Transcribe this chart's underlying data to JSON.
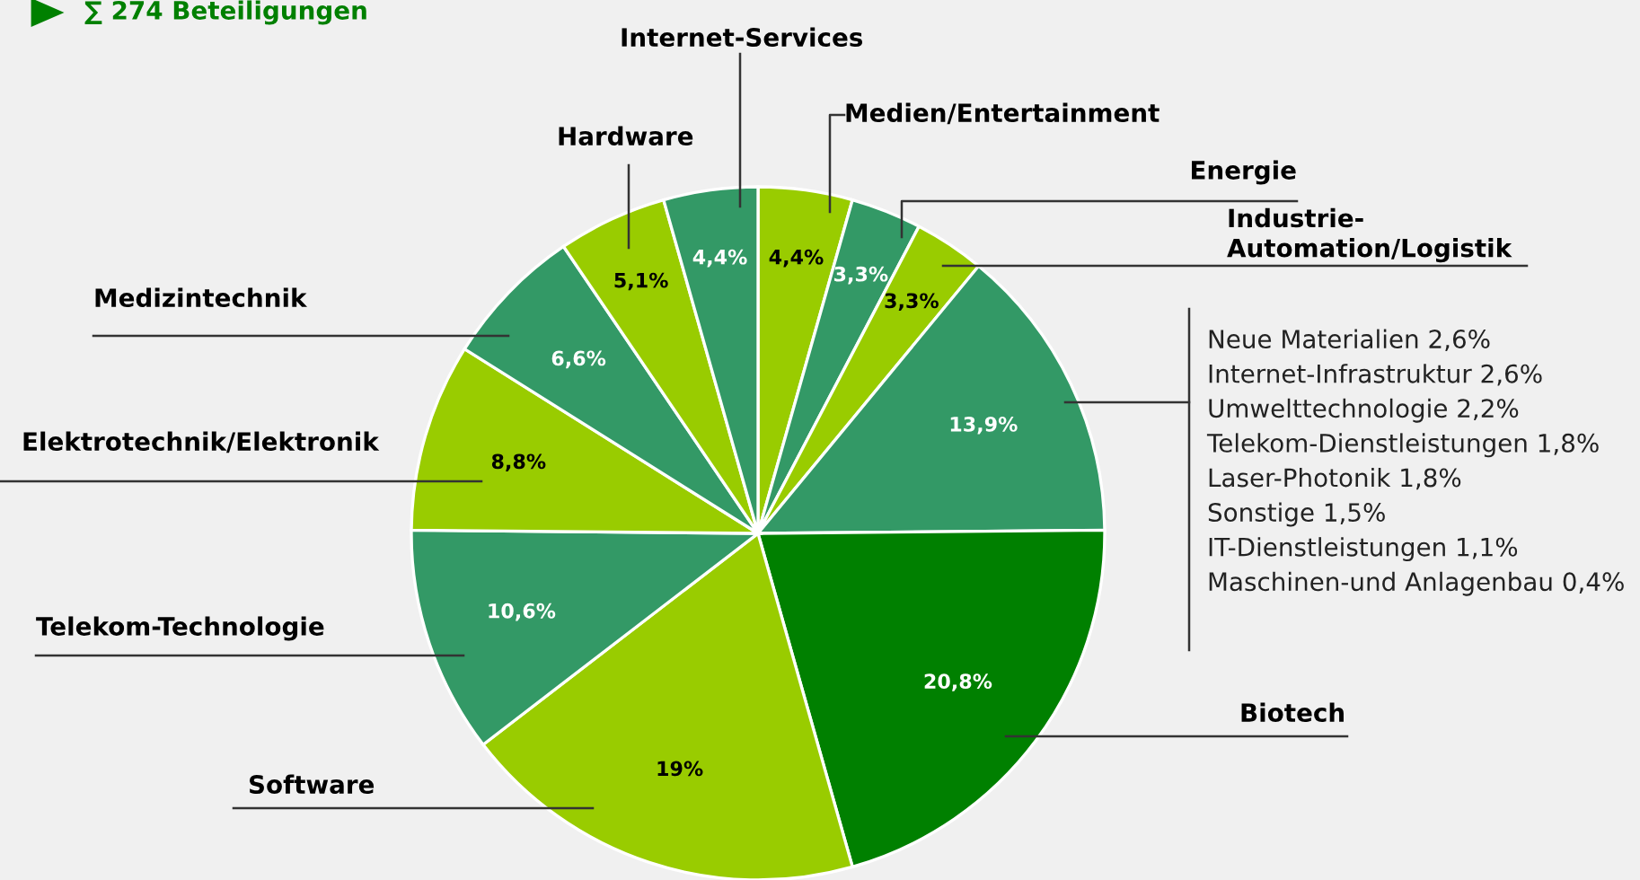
{
  "chart_data": {
    "type": "pie",
    "title": "∑ 274 Beteiligungen",
    "categories": [
      "Medien/Entertainment",
      "Energie",
      "Industrie-\nAutomation/Logistik",
      null,
      "Biotech",
      "Software",
      "Telekom-Technologie",
      "Elektrotechnik/Elektronik",
      "Medizintechnik",
      "Hardware",
      "Internet-Services"
    ],
    "values": [
      4.4,
      3.3,
      3.3,
      13.9,
      20.8,
      19,
      10.6,
      8.8,
      6.6,
      5.1,
      4.4
    ],
    "value_labels": [
      "4,4%",
      "3,3%",
      "3,3%",
      "13,9%",
      "20,8%",
      "19%",
      "10,6%",
      "8,8%",
      "6,6%",
      "5,1%",
      "4,4%"
    ],
    "colors": [
      "#99cc00",
      "#339966",
      "#99cc00",
      "#339966",
      "#008000",
      "#99cc00",
      "#339966",
      "#99cc00",
      "#339966",
      "#99cc00",
      "#339966"
    ],
    "annotations": [
      "Neue Materialien 2,6%",
      "Internet-Infrastruktur 2,6%",
      "Umwelttechnologie 2,2%",
      "Telekom-Dienstleistungen 1,8%",
      "Laser-Photonik 1,8%",
      "Sonstige 1,5%",
      "IT-Dienstleistungen 1,1%",
      "Maschinen-und Anlagenbau 0,4%"
    ]
  }
}
